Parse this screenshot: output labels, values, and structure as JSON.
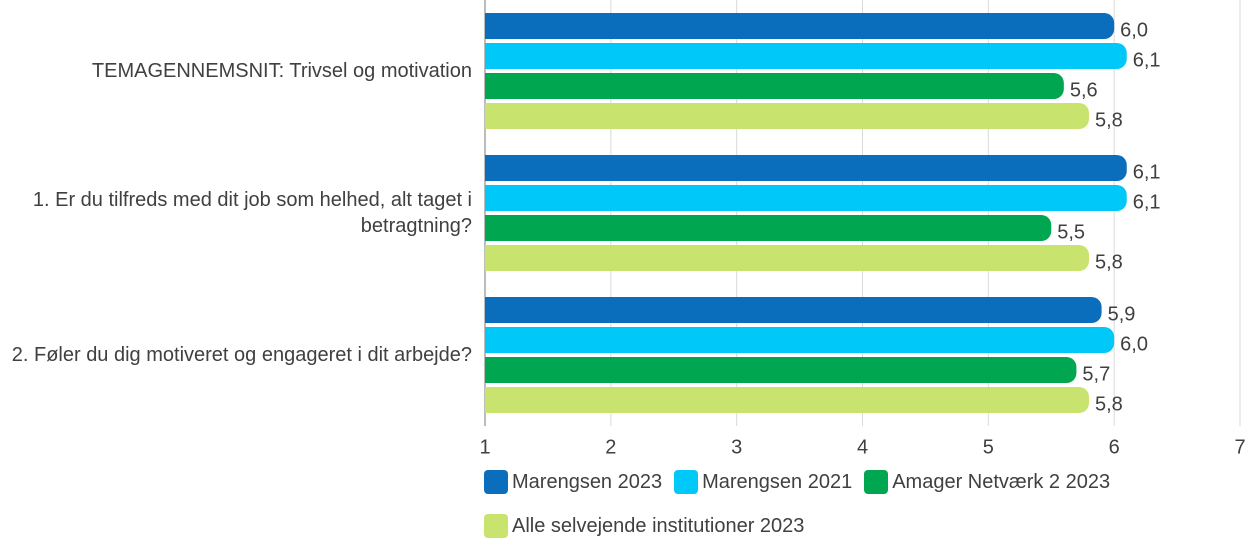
{
  "chart_data": {
    "type": "barh",
    "categories": [
      "TEMAGENNEMSNIT: Trivsel og motivation",
      "1. Er du tilfreds med dit job som helhed, alt taget i betragtning?",
      "2. Føler du dig motiveret og engageret i dit arbejde?"
    ],
    "series": [
      {
        "name": "Marengsen 2023",
        "color": "#0a6ebd",
        "values": [
          6.0,
          6.1,
          5.9
        ],
        "value_labels": [
          "6,0",
          "6,1",
          "5,9"
        ]
      },
      {
        "name": "Marengsen 2021",
        "color": "#00c8f8",
        "values": [
          6.1,
          6.1,
          6.0
        ],
        "value_labels": [
          "6,1",
          "6,1",
          "6,0"
        ]
      },
      {
        "name": "Amager Netværk 2 2023",
        "color": "#00a650",
        "values": [
          5.6,
          5.5,
          5.7
        ],
        "value_labels": [
          "5,6",
          "5,5",
          "5,7"
        ]
      },
      {
        "name": "Alle selvejende institutioner 2023",
        "color": "#c8e46e",
        "values": [
          5.8,
          5.8,
          5.8
        ],
        "value_labels": [
          "5,8",
          "5,8",
          "5,8"
        ]
      }
    ],
    "xlim": [
      1,
      7
    ],
    "xticks": [
      1,
      2,
      3,
      4,
      5,
      6,
      7
    ],
    "grid": true,
    "legend": "bottom"
  }
}
